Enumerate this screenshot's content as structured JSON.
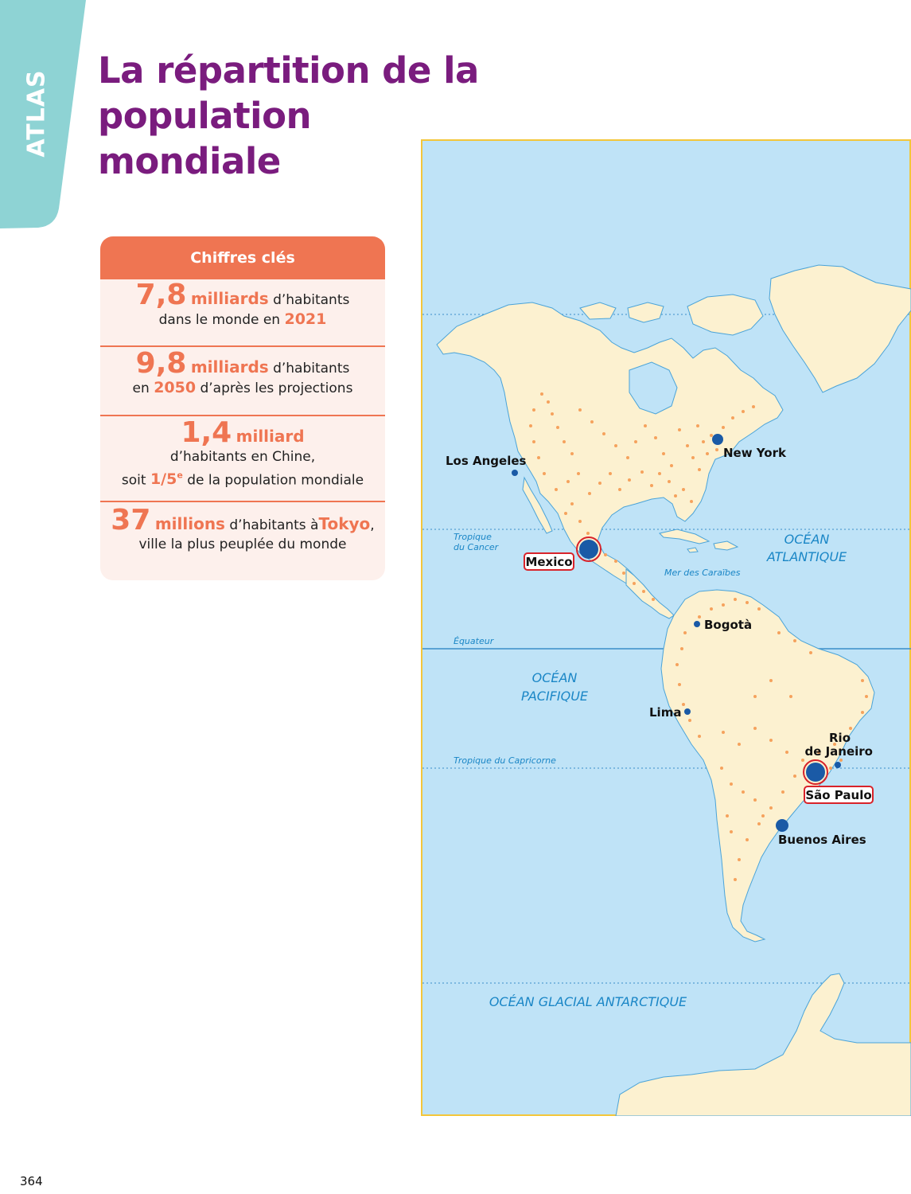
{
  "tab": {
    "label": "ATLAS",
    "color": "#8ed3d4"
  },
  "title": {
    "line1": "La répartition de la population",
    "line2": "mondiale",
    "color": "#7a1c7e"
  },
  "key_figures": {
    "header": "Chiffres clés",
    "accent_color": "#ef7552",
    "background": "#fdf0ec",
    "fact1": {
      "number": "7,8",
      "unit": "milliards",
      "text_a": "d’habitants",
      "text_b": "dans le monde en",
      "year": "2021"
    },
    "fact2": {
      "number": "9,8",
      "unit": "milliards",
      "text_a": "d’habitants",
      "text_b_pre": "en",
      "year": "2050",
      "text_b_post": "d’après les projections"
    },
    "fact3": {
      "number": "1,4",
      "unit": "milliard",
      "text_a": "d’habitants en Chine,",
      "text_b_pre": "soit",
      "fraction": "1/5",
      "fraction_sup": "e",
      "text_b_post": "de la population mondiale"
    },
    "fact4": {
      "number": "37",
      "unit": "millions",
      "text_a": "d’habitants à",
      "city": "Tokyo",
      "comma": ",",
      "text_b": "ville la plus peuplée du monde"
    }
  },
  "map": {
    "ocean_color": "#bfe3f7",
    "land_color": "#fcf1d0",
    "border_color": "#f3c63a",
    "dot_color": "#f5a25d",
    "city_marker_color": "#1a5aa6",
    "megacity_ring_color": "#d8232a",
    "labels": {
      "tropic_cancer_1": "Tropique",
      "tropic_cancer_2": "du Cancer",
      "ocean_atlantic_1": "OCÉAN",
      "ocean_atlantic_2": "ATLANTIQUE",
      "caribbean": "Mer des Caraïbes",
      "equator": "Équateur",
      "ocean_pacific_1": "OCÉAN",
      "ocean_pacific_2": "PACIFIQUE",
      "tropic_capricorn": "Tropique du Capricorne",
      "ocean_antarctic": "OCÉAN GLACIAL ANTARCTIQUE"
    },
    "cities": {
      "los_angeles": "Los Angeles",
      "new_york": "New York",
      "mexico": "Mexico",
      "bogota": "Bogotà",
      "lima": "Lima",
      "rio_1": "Rio",
      "rio_2": "de Janeiro",
      "sao_paulo": "São Paulo",
      "buenos_aires": "Buenos Aires"
    }
  },
  "page_number": "364"
}
